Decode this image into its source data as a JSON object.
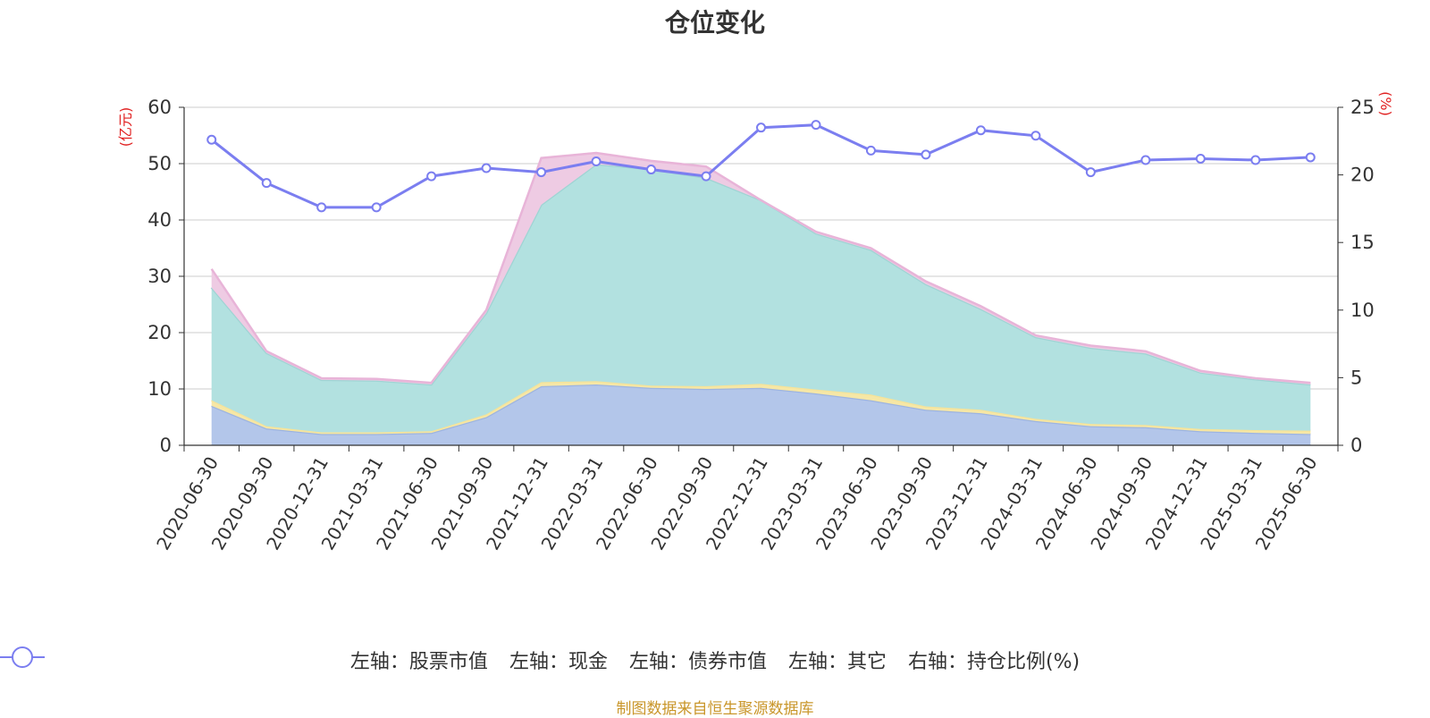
{
  "chart_data": {
    "type": "area",
    "title": "仓位变化",
    "left_unit": "(亿元)",
    "right_unit": "(%)",
    "x": [
      "2020-06-30",
      "2020-09-30",
      "2020-12-31",
      "2021-03-31",
      "2021-06-30",
      "2021-09-30",
      "2021-12-31",
      "2022-03-31",
      "2022-06-30",
      "2022-09-30",
      "2022-12-31",
      "2023-03-31",
      "2023-06-30",
      "2023-09-30",
      "2023-12-31",
      "2024-03-31",
      "2024-06-30",
      "2024-09-30",
      "2024-12-31",
      "2025-03-31",
      "2025-06-30"
    ],
    "ylim_left": [
      0,
      60
    ],
    "yticks_left": [
      "0",
      "10",
      "20",
      "30",
      "40",
      "50",
      "60"
    ],
    "ylim_right": [
      0,
      25
    ],
    "yticks_right": [
      "0",
      "5",
      "10",
      "15",
      "20",
      "25"
    ],
    "grid": true,
    "legend_position": "bottom",
    "stacked_series": [
      {
        "name": "左轴：股票市值",
        "color": "#9db4e0",
        "fill": "#b3c6ea",
        "values": [
          7.0,
          3.0,
          2.0,
          2.0,
          2.2,
          5.0,
          10.5,
          10.8,
          10.2,
          10.0,
          10.2,
          9.2,
          8.0,
          6.3,
          5.7,
          4.3,
          3.4,
          3.2,
          2.5,
          2.2,
          2.0
        ]
      },
      {
        "name": "左轴：现金",
        "color": "#f5e39a",
        "fill": "#f6e7a6",
        "values": [
          1.0,
          0.4,
          0.3,
          0.3,
          0.3,
          0.5,
          0.7,
          0.6,
          0.4,
          0.5,
          0.7,
          0.7,
          1.0,
          0.6,
          0.6,
          0.4,
          0.4,
          0.4,
          0.4,
          0.5,
          0.6
        ]
      },
      {
        "name": "左轴：债券市值",
        "color": "#9fd4d4",
        "fill": "#b2e1e0",
        "values": [
          20.0,
          13.0,
          9.3,
          9.2,
          8.3,
          18.0,
          31.5,
          38.5,
          38.4,
          37.0,
          32.6,
          27.7,
          25.7,
          21.7,
          17.9,
          14.5,
          13.5,
          12.7,
          10.0,
          9.0,
          8.2
        ]
      },
      {
        "name": "左轴：其它",
        "color": "#e8b4d8",
        "fill": "#eecbe3",
        "values": [
          3.3,
          0.3,
          0.3,
          0.3,
          0.3,
          0.5,
          8.3,
          2.0,
          1.5,
          2.0,
          0.0,
          0.3,
          0.3,
          0.5,
          0.5,
          0.3,
          0.4,
          0.4,
          0.3,
          0.2,
          0.3
        ]
      }
    ],
    "line_series": {
      "name": "右轴：持仓比例(%)",
      "color": "#7b7ef0",
      "values": [
        22.6,
        19.4,
        17.6,
        17.6,
        19.9,
        20.5,
        20.2,
        21.0,
        20.4,
        19.9,
        23.5,
        23.7,
        21.8,
        21.5,
        23.3,
        22.9,
        20.2,
        21.1,
        21.2,
        21.1,
        21.3
      ]
    }
  },
  "source_note": "制图数据来自恒生聚源数据库"
}
